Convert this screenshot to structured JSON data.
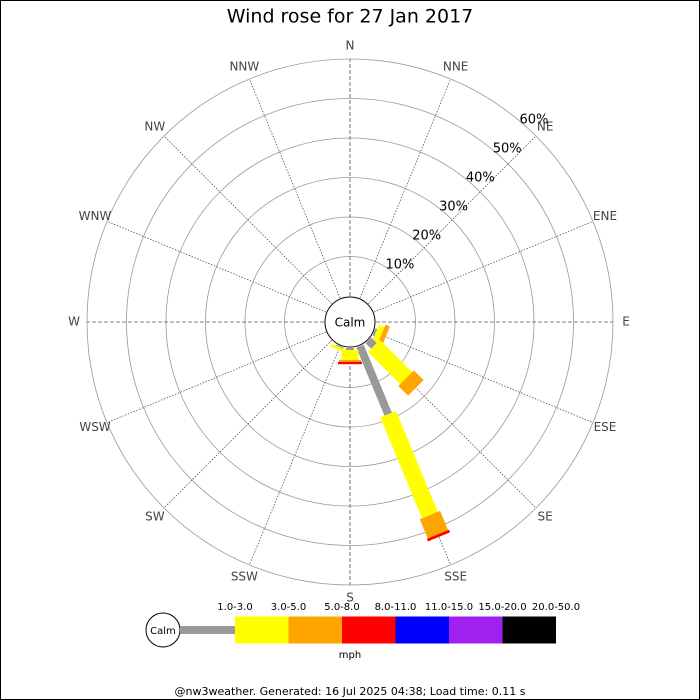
{
  "chart_data": {
    "type": "windrose",
    "title": "Wind rose for 27 Jan 2017",
    "categories": [
      "N",
      "NNE",
      "NE",
      "ENE",
      "E",
      "ESE",
      "SE",
      "SSE",
      "S",
      "SSW",
      "SW",
      "WSW",
      "W",
      "WNW",
      "NW",
      "NNW"
    ],
    "calm_label": "Calm",
    "rlim": [
      0,
      60
    ],
    "rticks": [
      {
        "value": 10,
        "label": "10%"
      },
      {
        "value": 20,
        "label": "20%"
      },
      {
        "value": 30,
        "label": "30%"
      },
      {
        "value": 40,
        "label": "40%"
      },
      {
        "value": 50,
        "label": "50%"
      },
      {
        "value": 60,
        "label": "60%"
      }
    ],
    "series": [
      {
        "name": "1.0-3.0",
        "color": "#999999",
        "values": [
          0,
          0,
          0,
          0,
          0,
          0.5,
          2,
          18.7,
          0.5,
          0.3,
          0,
          0,
          0,
          0,
          0,
          0
        ]
      },
      {
        "name": "3.0-5.0",
        "color": "#ffff00",
        "values": [
          0,
          0,
          0,
          0,
          0,
          1.5,
          11.5,
          27.6,
          2.5,
          0.8,
          0,
          0,
          0,
          0,
          0,
          0
        ]
      },
      {
        "name": "5.0-8.0",
        "color": "#ffa500",
        "values": [
          0,
          0,
          0,
          0,
          0,
          1.2,
          3.5,
          5.3,
          0.5,
          0,
          0,
          0,
          0,
          0,
          0,
          0
        ]
      },
      {
        "name": "8.0-11.0",
        "color": "#ff0000",
        "values": [
          0,
          0,
          0,
          0,
          0,
          0,
          0,
          0.7,
          0.6,
          0,
          0,
          0,
          0,
          0,
          0,
          0
        ]
      },
      {
        "name": "11.0-15.0",
        "color": "#0000ff",
        "values": [
          0,
          0,
          0,
          0,
          0,
          0,
          0,
          0,
          0,
          0,
          0,
          0,
          0,
          0,
          0,
          0
        ]
      },
      {
        "name": "15.0-20.0",
        "color": "#a020f0",
        "values": [
          0,
          0,
          0,
          0,
          0,
          0,
          0,
          0,
          0,
          0,
          0,
          0,
          0,
          0,
          0,
          0
        ]
      },
      {
        "name": "20.0-50.0",
        "color": "#000000",
        "values": [
          0,
          0,
          0,
          0,
          0,
          0,
          0,
          0,
          0,
          0,
          0,
          0,
          0,
          0,
          0,
          0
        ]
      }
    ],
    "legend_unit": "mph",
    "footer": "@nw3weather. Generated: 16 Jul 2025 04:38; Load time: 0.11 s"
  }
}
